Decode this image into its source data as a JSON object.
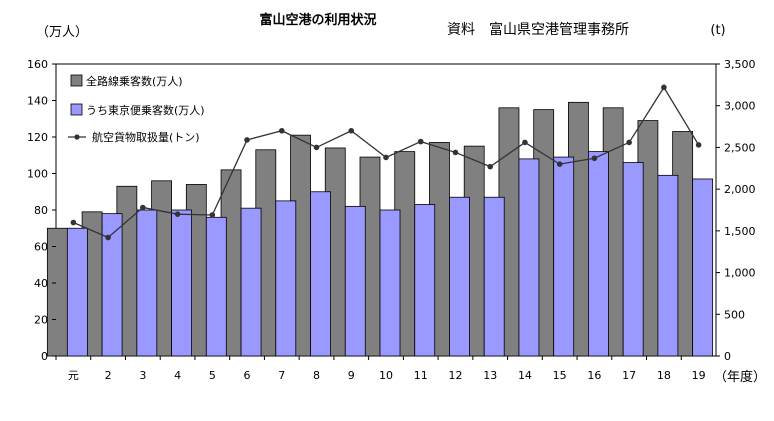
{
  "chart_data": {
    "type": "bar",
    "title": "富山空港の利用状況",
    "source": "資料　富山県空港管理事務所",
    "ylabel": "（万人）",
    "y2label": "(t)",
    "xlabel": "（年度）",
    "categories": [
      "元",
      "2",
      "3",
      "4",
      "5",
      "6",
      "7",
      "8",
      "9",
      "10",
      "11",
      "12",
      "13",
      "14",
      "15",
      "16",
      "17",
      "18",
      "19"
    ],
    "ylim": [
      0,
      160
    ],
    "y2lim": [
      0,
      3500
    ],
    "yticks": [
      "0",
      "20",
      "40",
      "60",
      "80",
      "100",
      "120",
      "140",
      "160"
    ],
    "y2ticks": [
      "0",
      "500",
      "1,000",
      "1,500",
      "2,000",
      "2,500",
      "3,000",
      "3,500"
    ],
    "legend_position": "top-left",
    "series": [
      {
        "name": "全路線乗客数(万人)",
        "type": "bar",
        "axis": "left",
        "color": "#808080",
        "values": [
          70,
          79,
          93,
          96,
          94,
          102,
          113,
          121,
          114,
          109,
          112,
          117,
          115,
          136,
          135,
          139,
          136,
          129,
          123
        ]
      },
      {
        "name": "うち東京便乗客数(万人)",
        "type": "bar",
        "axis": "left",
        "color": "#9999ff",
        "values": [
          70,
          78,
          80,
          80,
          76,
          81,
          85,
          90,
          82,
          80,
          83,
          87,
          87,
          108,
          109,
          112,
          106,
          99,
          97
        ]
      },
      {
        "name": "航空貨物取扱量(トン)",
        "type": "line",
        "axis": "right",
        "color": "#333333",
        "values": [
          1600,
          1420,
          1780,
          1700,
          1690,
          2590,
          2700,
          2500,
          2700,
          2380,
          2570,
          2440,
          2270,
          2560,
          2300,
          2370,
          2560,
          3220,
          2530
        ]
      }
    ]
  }
}
